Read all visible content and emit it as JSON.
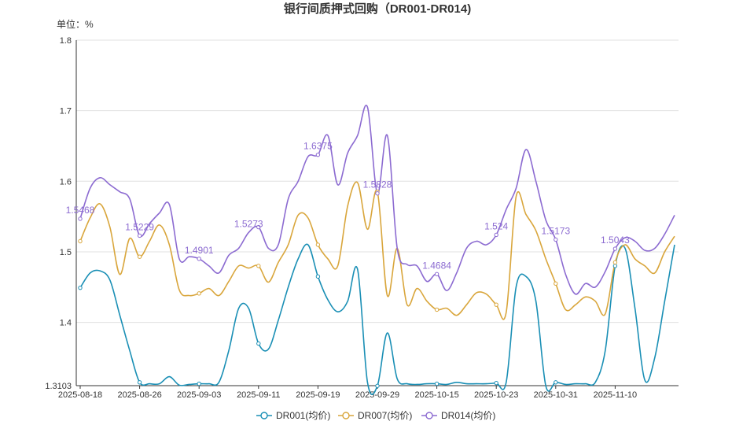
{
  "chart_data": {
    "type": "line",
    "title": "银行间质押式回购（DR001-DR014)",
    "unit_label": "单位：%",
    "ylim": [
      1.3103,
      1.8
    ],
    "yticks": [
      1.3103,
      1.4,
      1.5,
      1.6,
      1.7,
      1.8
    ],
    "ytick_labels": [
      "1.3103",
      "1.4",
      "1.5",
      "1.6",
      "1.7",
      "1.8"
    ],
    "x_tick_labels": [
      "2025-08-18",
      "2025-08-26",
      "2025-09-03",
      "2025-09-11",
      "2025-09-19",
      "2025-09-29",
      "2025-10-15",
      "2025-10-23",
      "2025-10-31",
      "2025-11-10"
    ],
    "x_tick_index": [
      0,
      6,
      12,
      18,
      24,
      30,
      36,
      42,
      48,
      54
    ],
    "grid": true,
    "legend_position": "bottom",
    "series": [
      {
        "name": "DR001(均价)",
        "color": "#1a8fb5",
        "values": [
          1.449,
          1.47,
          1.473,
          1.46,
          1.41,
          1.36,
          1.315,
          1.313,
          1.313,
          1.323,
          1.311,
          1.312,
          1.313,
          1.313,
          1.315,
          1.36,
          1.42,
          1.42,
          1.37,
          1.362,
          1.403,
          1.45,
          1.49,
          1.51,
          1.465,
          1.432,
          1.415,
          1.43,
          1.475,
          1.315,
          1.31,
          1.385,
          1.32,
          1.313,
          1.312,
          1.313,
          1.313,
          1.312,
          1.315,
          1.313,
          1.313,
          1.313,
          1.314,
          1.315,
          1.45,
          1.465,
          1.43,
          1.31,
          1.315,
          1.312,
          1.313,
          1.313,
          1.315,
          1.36,
          1.48,
          1.505,
          1.42,
          1.318,
          1.35,
          1.43,
          1.51
        ]
      },
      {
        "name": "DR007(均价)",
        "color": "#d9a63c",
        "values": [
          1.515,
          1.548,
          1.568,
          1.535,
          1.468,
          1.519,
          1.493,
          1.515,
          1.538,
          1.51,
          1.446,
          1.438,
          1.441,
          1.448,
          1.438,
          1.458,
          1.48,
          1.477,
          1.48,
          1.457,
          1.485,
          1.51,
          1.552,
          1.548,
          1.51,
          1.49,
          1.48,
          1.565,
          1.598,
          1.532,
          1.585,
          1.438,
          1.505,
          1.425,
          1.448,
          1.43,
          1.418,
          1.42,
          1.41,
          1.425,
          1.442,
          1.44,
          1.425,
          1.414,
          1.578,
          1.553,
          1.53,
          1.49,
          1.455,
          1.418,
          1.425,
          1.436,
          1.43,
          1.412,
          1.485,
          1.51,
          1.49,
          1.48,
          1.47,
          1.5,
          1.522
        ]
      },
      {
        "name": "DR014(均价)",
        "color": "#8c6bd1",
        "values": [
          1.5468,
          1.59,
          1.605,
          1.595,
          1.585,
          1.575,
          1.5229,
          1.54,
          1.555,
          1.567,
          1.49,
          1.493,
          1.4901,
          1.48,
          1.47,
          1.495,
          1.505,
          1.5273,
          1.535,
          1.505,
          1.51,
          1.575,
          1.6,
          1.635,
          1.6375,
          1.665,
          1.595,
          1.64,
          1.665,
          1.705,
          1.5828,
          1.665,
          1.505,
          1.482,
          1.48,
          1.458,
          1.4684,
          1.445,
          1.47,
          1.505,
          1.515,
          1.51,
          1.524,
          1.56,
          1.59,
          1.645,
          1.6,
          1.545,
          1.5173,
          1.468,
          1.44,
          1.455,
          1.45,
          1.472,
          1.5043,
          1.52,
          1.515,
          1.502,
          1.505,
          1.525,
          1.552
        ]
      }
    ],
    "point_labels": [
      {
        "series": 2,
        "index": 0,
        "text": "1.5468"
      },
      {
        "series": 2,
        "index": 6,
        "text": "1.5229"
      },
      {
        "series": 2,
        "index": 12,
        "text": "1.4901"
      },
      {
        "series": 2,
        "index": 17,
        "text": "1.5273"
      },
      {
        "series": 2,
        "index": 24,
        "text": "1.6375"
      },
      {
        "series": 2,
        "index": 30,
        "text": "1.5828"
      },
      {
        "series": 2,
        "index": 36,
        "text": "1.4684"
      },
      {
        "series": 2,
        "index": 42,
        "text": "1.524"
      },
      {
        "series": 2,
        "index": 48,
        "text": "1.5173"
      },
      {
        "series": 2,
        "index": 54,
        "text": "1.5043"
      }
    ],
    "marker_index": [
      0,
      6,
      12,
      18,
      24,
      30,
      36,
      42,
      48,
      54
    ]
  }
}
